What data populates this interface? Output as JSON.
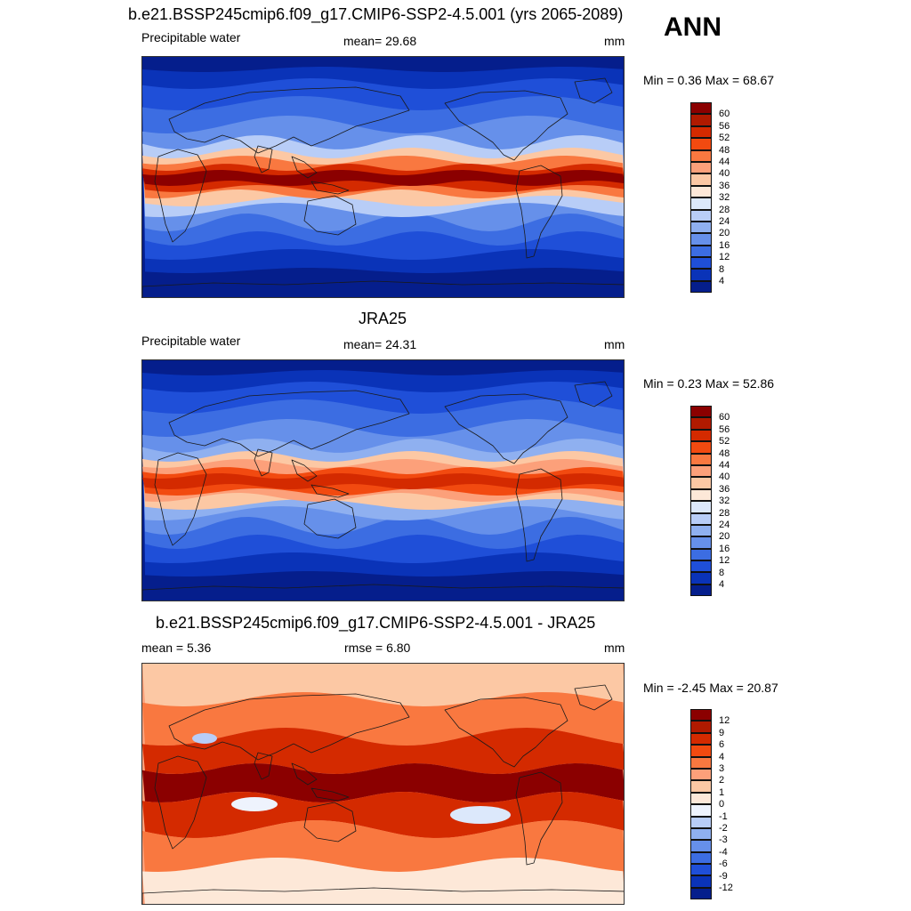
{
  "season": "ANN",
  "panels": [
    {
      "title": "b.e21.BSSP245cmip6.f09_g17.CMIP6-SSP2-4.5.001 (yrs 2065-2089)",
      "left": "Precipitable water",
      "center": "mean=  29.68",
      "right": "mm",
      "minmax": "Min =   0.36 Max =  68.67",
      "type": "model",
      "colorbar": {
        "labels": [
          "60",
          "56",
          "52",
          "48",
          "44",
          "40",
          "36",
          "32",
          "28",
          "24",
          "20",
          "16",
          "12",
          "8",
          "4"
        ],
        "colors": [
          "#8b0000",
          "#b01a00",
          "#d42a00",
          "#f24a10",
          "#f97840",
          "#fca07a",
          "#fcc8a4",
          "#fde8d8",
          "#dce8fb",
          "#b8cdf7",
          "#8fb0f0",
          "#6690ea",
          "#3c6de2",
          "#1f4fd8",
          "#0a33b8",
          "#051e8c"
        ]
      }
    },
    {
      "title": "JRA25",
      "left": "Precipitable water",
      "center": "mean=  24.31",
      "right": "mm",
      "minmax": "Min =   0.23 Max =  52.86",
      "type": "obs",
      "colorbar": {
        "labels": [
          "60",
          "56",
          "52",
          "48",
          "44",
          "40",
          "36",
          "32",
          "28",
          "24",
          "20",
          "16",
          "12",
          "8",
          "4"
        ],
        "colors": [
          "#8b0000",
          "#b01a00",
          "#d42a00",
          "#f24a10",
          "#f97840",
          "#fca07a",
          "#fcc8a4",
          "#fde8d8",
          "#dce8fb",
          "#b8cdf7",
          "#8fb0f0",
          "#6690ea",
          "#3c6de2",
          "#1f4fd8",
          "#0a33b8",
          "#051e8c"
        ]
      }
    },
    {
      "title": "b.e21.BSSP245cmip6.f09_g17.CMIP6-SSP2-4.5.001 - JRA25",
      "left": "mean =   5.36",
      "center": "rmse =   6.80",
      "right": "mm",
      "minmax": "Min =  -2.45 Max =  20.87",
      "type": "diff",
      "colorbar": {
        "labels": [
          "12",
          "9",
          "6",
          "4",
          "3",
          "2",
          "1",
          "0",
          "-1",
          "-2",
          "-3",
          "-4",
          "-6",
          "-9",
          "-12"
        ],
        "colors": [
          "#8b0000",
          "#b01a00",
          "#d42a00",
          "#f24a10",
          "#f97840",
          "#fca07a",
          "#fcc8a4",
          "#fde8d8",
          "#eef3fd",
          "#b8cdf7",
          "#8fb0f0",
          "#6690ea",
          "#3c6de2",
          "#1f4fd8",
          "#0a33b8",
          "#051e8c"
        ]
      }
    }
  ]
}
